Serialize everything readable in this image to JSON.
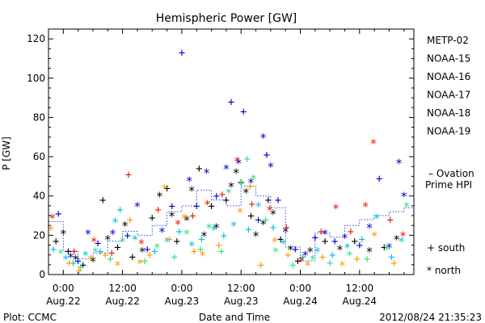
{
  "chart_data": {
    "type": "scatter",
    "title": "Hemispheric Power [GW]",
    "xlabel": "Date and Time",
    "ylabel": "P [GW]",
    "x_unit": "hours",
    "xlim": [
      -3,
      71
    ],
    "ylim": [
      0,
      125
    ],
    "y_ticks": [
      0,
      20,
      40,
      60,
      80,
      100,
      120
    ],
    "x_ticks": [
      {
        "x": 0,
        "time": "0:00",
        "date": "Aug.22"
      },
      {
        "x": 12,
        "time": "12:00",
        "date": "Aug.22"
      },
      {
        "x": 24,
        "time": "0:00",
        "date": "Aug.23"
      },
      {
        "x": 36,
        "time": "12:00",
        "date": "Aug.23"
      },
      {
        "x": 48,
        "time": "0:00",
        "date": "Aug.24"
      },
      {
        "x": 60,
        "time": "12:00",
        "date": "Aug.24"
      }
    ],
    "legend_position": "right",
    "series": [
      {
        "name": "METP-02",
        "color": "#000000",
        "points": [
          {
            "x": -1.5,
            "y": 17,
            "m": "+"
          },
          {
            "x": 0,
            "y": 21,
            "m": "*"
          },
          {
            "x": 1,
            "y": 12,
            "m": "+"
          },
          {
            "x": 2.5,
            "y": 8,
            "m": "*"
          },
          {
            "x": 4,
            "y": 5,
            "m": "+"
          },
          {
            "x": 6,
            "y": 7,
            "m": "*"
          },
          {
            "x": 8,
            "y": 38,
            "m": "+"
          },
          {
            "x": 9,
            "y": 18,
            "m": "*"
          },
          {
            "x": 11,
            "y": 14,
            "m": "+"
          },
          {
            "x": 12.5,
            "y": 25,
            "m": "*"
          },
          {
            "x": 14,
            "y": 9,
            "m": "+"
          },
          {
            "x": 16,
            "y": 12,
            "m": "*"
          },
          {
            "x": 18,
            "y": 29,
            "m": "+"
          },
          {
            "x": 19.5,
            "y": 40,
            "m": "*"
          },
          {
            "x": 21,
            "y": 44,
            "m": "+"
          },
          {
            "x": 22,
            "y": 30,
            "m": "*"
          },
          {
            "x": 23,
            "y": 17,
            "m": "+"
          },
          {
            "x": 25,
            "y": 28,
            "m": "*"
          },
          {
            "x": 26,
            "y": 43,
            "m": "*"
          },
          {
            "x": 27.5,
            "y": 54,
            "m": "+"
          },
          {
            "x": 28.5,
            "y": 20,
            "m": "*"
          },
          {
            "x": 30,
            "y": 35,
            "m": "+"
          },
          {
            "x": 31,
            "y": 24,
            "m": "*"
          },
          {
            "x": 33,
            "y": 38,
            "m": "+"
          },
          {
            "x": 34,
            "y": 45,
            "m": "*"
          },
          {
            "x": 35,
            "y": 52,
            "m": "*"
          },
          {
            "x": 36,
            "y": 47,
            "m": "+"
          },
          {
            "x": 37,
            "y": 42,
            "m": "*"
          },
          {
            "x": 38,
            "y": 30,
            "m": "+"
          },
          {
            "x": 39,
            "y": 20,
            "m": "*"
          },
          {
            "x": 40.5,
            "y": 26,
            "m": "*"
          },
          {
            "x": 41.5,
            "y": 38,
            "m": "+"
          },
          {
            "x": 42.5,
            "y": 31,
            "m": "*"
          },
          {
            "x": 44,
            "y": 18,
            "m": "+"
          },
          {
            "x": 46,
            "y": 13,
            "m": "*"
          },
          {
            "x": 47.5,
            "y": 7,
            "m": "+"
          },
          {
            "x": 50,
            "y": 12,
            "m": "*"
          },
          {
            "x": 53,
            "y": 17,
            "m": "+"
          },
          {
            "x": 56,
            "y": 13,
            "m": "*"
          },
          {
            "x": 59,
            "y": 17,
            "m": "+"
          },
          {
            "x": 62,
            "y": 12,
            "m": "*"
          },
          {
            "x": 65,
            "y": 14,
            "m": "+"
          },
          {
            "x": 67.5,
            "y": 18,
            "m": "*"
          }
        ]
      },
      {
        "name": "NOAA-15",
        "color": "#0000cc",
        "points": [
          {
            "x": -1,
            "y": 31,
            "m": "+"
          },
          {
            "x": 1.5,
            "y": 9,
            "m": "*"
          },
          {
            "x": 3,
            "y": 7,
            "m": "+"
          },
          {
            "x": 5,
            "y": 21,
            "m": "*"
          },
          {
            "x": 7,
            "y": 16,
            "m": "+"
          },
          {
            "x": 10,
            "y": 21,
            "m": "*"
          },
          {
            "x": 13,
            "y": 20,
            "m": "+"
          },
          {
            "x": 15,
            "y": 35,
            "m": "*"
          },
          {
            "x": 17,
            "y": 13,
            "m": "+"
          },
          {
            "x": 20,
            "y": 22,
            "m": "*"
          },
          {
            "x": 22,
            "y": 35,
            "m": "+"
          },
          {
            "x": 24,
            "y": 113,
            "m": "+"
          },
          {
            "x": 25.5,
            "y": 48,
            "m": "*"
          },
          {
            "x": 27,
            "y": 35,
            "m": "+"
          },
          {
            "x": 29,
            "y": 52,
            "m": "*"
          },
          {
            "x": 31,
            "y": 40,
            "m": "+"
          },
          {
            "x": 33,
            "y": 54,
            "m": "*"
          },
          {
            "x": 34,
            "y": 88,
            "m": "+"
          },
          {
            "x": 35.5,
            "y": 57,
            "m": "*"
          },
          {
            "x": 36.5,
            "y": 83,
            "m": "+"
          },
          {
            "x": 38,
            "y": 47,
            "m": "*"
          },
          {
            "x": 39.5,
            "y": 28,
            "m": "+"
          },
          {
            "x": 40.5,
            "y": 70,
            "m": "*"
          },
          {
            "x": 41.2,
            "y": 61,
            "m": "+"
          },
          {
            "x": 42,
            "y": 55,
            "m": "*"
          },
          {
            "x": 43.5,
            "y": 38,
            "m": "+"
          },
          {
            "x": 45,
            "y": 22,
            "m": "*"
          },
          {
            "x": 47,
            "y": 13,
            "m": "+"
          },
          {
            "x": 49,
            "y": 10,
            "m": "*"
          },
          {
            "x": 51,
            "y": 19,
            "m": "+"
          },
          {
            "x": 53,
            "y": 21,
            "m": "*"
          },
          {
            "x": 55,
            "y": 17,
            "m": "+"
          },
          {
            "x": 57,
            "y": 19,
            "m": "*"
          },
          {
            "x": 60,
            "y": 15,
            "m": "+"
          },
          {
            "x": 62,
            "y": 24,
            "m": "*"
          },
          {
            "x": 64,
            "y": 49,
            "m": "+"
          },
          {
            "x": 66,
            "y": 14,
            "m": "*"
          },
          {
            "x": 68,
            "y": 57,
            "m": "*"
          },
          {
            "x": 69,
            "y": 40,
            "m": "*"
          }
        ]
      },
      {
        "name": "NOAA-16",
        "color": "#00c0e0",
        "points": [
          {
            "x": -2,
            "y": 13,
            "m": "+"
          },
          {
            "x": 0.5,
            "y": 8,
            "m": "*"
          },
          {
            "x": 2,
            "y": 6,
            "m": "+"
          },
          {
            "x": 4.5,
            "y": 10,
            "m": "*"
          },
          {
            "x": 7.5,
            "y": 12,
            "m": "+"
          },
          {
            "x": 10.5,
            "y": 27,
            "m": "*"
          },
          {
            "x": 11.5,
            "y": 33,
            "m": "+"
          },
          {
            "x": 14.5,
            "y": 18,
            "m": "*"
          },
          {
            "x": 18.5,
            "y": 12,
            "m": "+"
          },
          {
            "x": 21,
            "y": 17,
            "m": "*"
          },
          {
            "x": 23.5,
            "y": 22,
            "m": "+"
          },
          {
            "x": 26,
            "y": 15,
            "m": "*"
          },
          {
            "x": 28,
            "y": 18,
            "m": "+"
          },
          {
            "x": 30.5,
            "y": 23,
            "m": "*"
          },
          {
            "x": 32.5,
            "y": 20,
            "m": "+"
          },
          {
            "x": 34.5,
            "y": 25,
            "m": "*"
          },
          {
            "x": 37.5,
            "y": 23,
            "m": "+"
          },
          {
            "x": 39.5,
            "y": 35,
            "m": "*"
          },
          {
            "x": 42.5,
            "y": 24,
            "m": "+"
          },
          {
            "x": 44.5,
            "y": 16,
            "m": "*"
          },
          {
            "x": 48.5,
            "y": 9,
            "m": "+"
          },
          {
            "x": 51.5,
            "y": 12,
            "m": "*"
          },
          {
            "x": 54.5,
            "y": 10,
            "m": "+"
          },
          {
            "x": 57.5,
            "y": 14,
            "m": "*"
          },
          {
            "x": 60.5,
            "y": 18,
            "m": "+"
          },
          {
            "x": 63.5,
            "y": 29,
            "m": "*"
          },
          {
            "x": 66.5,
            "y": 9,
            "m": "+"
          },
          {
            "x": 68.5,
            "y": 17,
            "m": "*"
          }
        ]
      },
      {
        "name": "NOAA-17",
        "color": "#30e080",
        "points": [
          {
            "x": -0.5,
            "y": 11,
            "m": "*"
          },
          {
            "x": 3.5,
            "y": 4,
            "m": "+"
          },
          {
            "x": 6.5,
            "y": 12,
            "m": "*"
          },
          {
            "x": 9.5,
            "y": 8,
            "m": "+"
          },
          {
            "x": 12,
            "y": 17,
            "m": "*"
          },
          {
            "x": 16.5,
            "y": 7,
            "m": "+"
          },
          {
            "x": 19,
            "y": 14,
            "m": "*"
          },
          {
            "x": 22.5,
            "y": 9,
            "m": "+"
          },
          {
            "x": 25,
            "y": 21,
            "m": "*"
          },
          {
            "x": 27.8,
            "y": 13,
            "m": "+"
          },
          {
            "x": 29.5,
            "y": 24,
            "m": "*"
          },
          {
            "x": 32,
            "y": 12,
            "m": "+"
          },
          {
            "x": 33.5,
            "y": 42,
            "m": "*"
          },
          {
            "x": 36,
            "y": 46,
            "m": "*"
          },
          {
            "x": 37.2,
            "y": 59,
            "m": "+"
          },
          {
            "x": 38.5,
            "y": 49,
            "m": "*"
          },
          {
            "x": 41,
            "y": 28,
            "m": "+"
          },
          {
            "x": 43,
            "y": 12,
            "m": "*"
          },
          {
            "x": 46.5,
            "y": 5,
            "m": "+"
          },
          {
            "x": 50.5,
            "y": 8,
            "m": "*"
          },
          {
            "x": 54,
            "y": 6,
            "m": "+"
          },
          {
            "x": 58,
            "y": 10,
            "m": "*"
          },
          {
            "x": 61.5,
            "y": 8,
            "m": "+"
          },
          {
            "x": 65.5,
            "y": 13,
            "m": "*"
          },
          {
            "x": 69.5,
            "y": 35,
            "m": "*"
          }
        ]
      },
      {
        "name": "NOAA-18",
        "color": "#ff9900",
        "points": [
          {
            "x": -2.5,
            "y": 23,
            "m": "*"
          },
          {
            "x": 1.2,
            "y": 6,
            "m": "+"
          },
          {
            "x": 3.2,
            "y": 2,
            "m": "+"
          },
          {
            "x": 5.5,
            "y": 8,
            "m": "*"
          },
          {
            "x": 8.5,
            "y": 10,
            "m": "+"
          },
          {
            "x": 11,
            "y": 5,
            "m": "*"
          },
          {
            "x": 13.5,
            "y": 28,
            "m": "+"
          },
          {
            "x": 15.5,
            "y": 6,
            "m": "*"
          },
          {
            "x": 17.5,
            "y": 10,
            "m": "+"
          },
          {
            "x": 20.5,
            "y": 44,
            "m": "*"
          },
          {
            "x": 21.5,
            "y": 18,
            "m": "+"
          },
          {
            "x": 24.5,
            "y": 29,
            "m": "*"
          },
          {
            "x": 26.5,
            "y": 12,
            "m": "+"
          },
          {
            "x": 28.2,
            "y": 10,
            "m": "*"
          },
          {
            "x": 31.5,
            "y": 15,
            "m": "+"
          },
          {
            "x": 35.8,
            "y": 32,
            "m": "*"
          },
          {
            "x": 37.8,
            "y": 45,
            "m": "+"
          },
          {
            "x": 40,
            "y": 5,
            "m": "+"
          },
          {
            "x": 42.8,
            "y": 17,
            "m": "*"
          },
          {
            "x": 45.5,
            "y": 10,
            "m": "+"
          },
          {
            "x": 49.5,
            "y": 5,
            "m": "*"
          },
          {
            "x": 52.5,
            "y": 9,
            "m": "+"
          },
          {
            "x": 56.5,
            "y": 5,
            "m": "*"
          },
          {
            "x": 59.5,
            "y": 8,
            "m": "+"
          },
          {
            "x": 63,
            "y": 20,
            "m": "*"
          },
          {
            "x": 67,
            "y": 6,
            "m": "+"
          }
        ]
      },
      {
        "name": "NOAA-19",
        "color": "#e02000",
        "points": [
          {
            "x": -2.2,
            "y": 29,
            "m": "*"
          },
          {
            "x": 2.2,
            "y": 12,
            "m": "+"
          },
          {
            "x": 6.2,
            "y": 17,
            "m": "*"
          },
          {
            "x": 9.8,
            "y": 11,
            "m": "+"
          },
          {
            "x": 13.2,
            "y": 51,
            "m": "+"
          },
          {
            "x": 15.8,
            "y": 16,
            "m": "*"
          },
          {
            "x": 19.2,
            "y": 33,
            "m": "+"
          },
          {
            "x": 23.2,
            "y": 26,
            "m": "*"
          },
          {
            "x": 26.2,
            "y": 30,
            "m": "+"
          },
          {
            "x": 29.2,
            "y": 36,
            "m": "*"
          },
          {
            "x": 32.2,
            "y": 41,
            "m": "+"
          },
          {
            "x": 35.2,
            "y": 58,
            "m": "*"
          },
          {
            "x": 38.2,
            "y": 36,
            "m": "+"
          },
          {
            "x": 41.8,
            "y": 33,
            "m": "*"
          },
          {
            "x": 45.2,
            "y": 24,
            "m": "+"
          },
          {
            "x": 48.2,
            "y": 7,
            "m": "*"
          },
          {
            "x": 52.2,
            "y": 22,
            "m": "+"
          },
          {
            "x": 55.2,
            "y": 34,
            "m": "*"
          },
          {
            "x": 58.2,
            "y": 22,
            "m": "+"
          },
          {
            "x": 61.2,
            "y": 35,
            "m": "*"
          },
          {
            "x": 62.8,
            "y": 67,
            "m": "*"
          },
          {
            "x": 66.2,
            "y": 28,
            "m": "+"
          },
          {
            "x": 68.8,
            "y": 20,
            "m": "*"
          }
        ]
      }
    ],
    "ovation": {
      "name": "– Ovation Prime HPI",
      "color": "#1a4fd0",
      "x": [
        -3,
        0,
        3,
        6,
        9,
        12,
        15,
        18,
        21,
        24,
        27,
        30,
        33,
        36,
        39,
        42,
        45,
        48,
        51,
        54,
        57,
        60,
        63,
        66,
        69,
        71
      ],
      "y": [
        27,
        12,
        8,
        11,
        17,
        22,
        20,
        25,
        32,
        35,
        43,
        38,
        35,
        45,
        40,
        34,
        14,
        7,
        21,
        19,
        25,
        28,
        30,
        32,
        34,
        16
      ]
    },
    "marker_legend": [
      {
        "symbol": "+",
        "label": "south"
      },
      {
        "symbol": "*",
        "label": "north"
      }
    ]
  },
  "footer": {
    "left": "Plot: CCMC",
    "right": "2012/08/24 21:35:23"
  }
}
